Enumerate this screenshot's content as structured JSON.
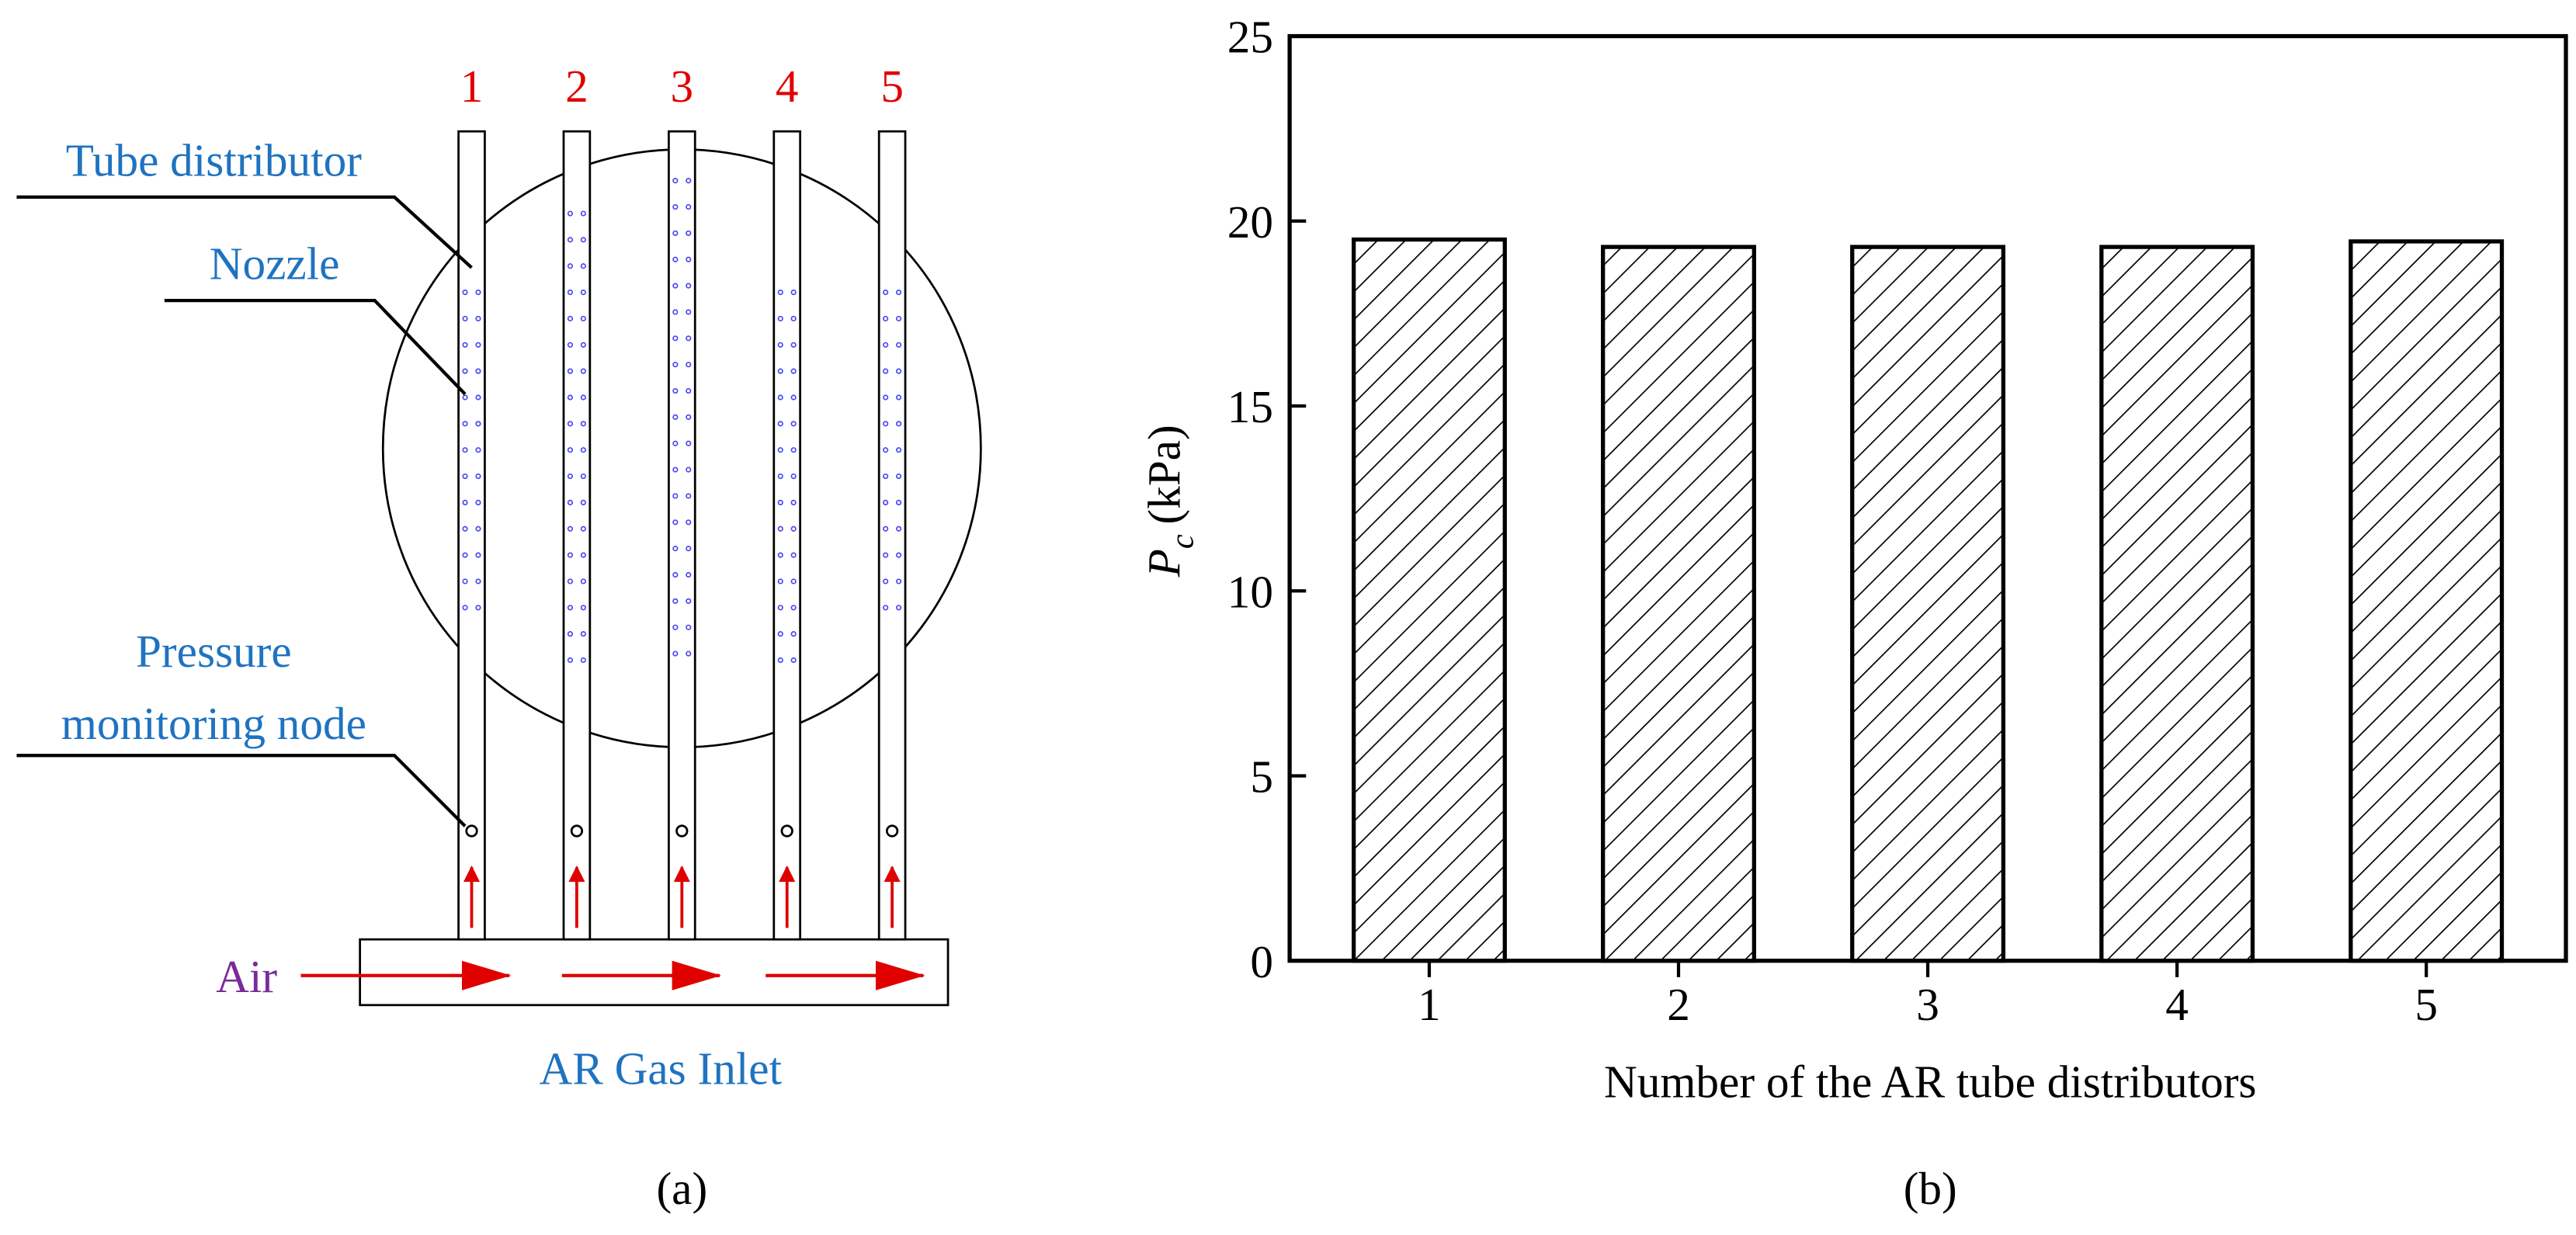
{
  "diagram": {
    "tube_numbers": [
      "1",
      "2",
      "3",
      "4",
      "5"
    ],
    "labels": {
      "tube_distributor": "Tube distributor",
      "nozzle": "Nozzle",
      "pressure_line1": "Pressure",
      "pressure_line2": "monitoring node",
      "air": "Air",
      "inlet": "AR Gas Inlet"
    },
    "caption": "(a)"
  },
  "chart_data": {
    "type": "bar",
    "caption": "(b)",
    "x_label": "Number of the AR tube distributors",
    "y_label": {
      "symbol": "P",
      "subscript": "c",
      "unit": "(kPa)"
    },
    "categories": [
      "1",
      "2",
      "3",
      "4",
      "5"
    ],
    "values": [
      19.5,
      19.3,
      19.3,
      19.3,
      19.45
    ],
    "color": "#000000",
    "hatch": true,
    "ylim": [
      0,
      25
    ],
    "yticks": [
      0,
      5,
      10,
      15,
      20,
      25
    ]
  }
}
